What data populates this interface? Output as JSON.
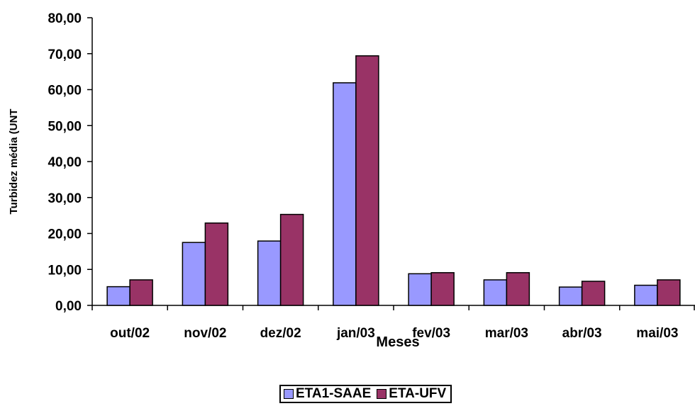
{
  "chart_data": {
    "type": "bar",
    "categories": [
      "out/02",
      "nov/02",
      "dez/02",
      "jan/03",
      "fev/03",
      "mar/03",
      "abr/03",
      "mai/03"
    ],
    "series": [
      {
        "name": "ETA1-SAAE",
        "color": "#9999ff",
        "values": [
          5.2,
          17.5,
          17.9,
          61.9,
          8.8,
          7.1,
          5.1,
          5.6
        ]
      },
      {
        "name": "ETA-UFV",
        "color": "#993366",
        "values": [
          7.1,
          22.9,
          25.3,
          69.4,
          9.1,
          9.1,
          6.7,
          7.1
        ]
      }
    ],
    "xlabel": "Meses",
    "ylabel": "Turbidez média (UNT",
    "ylim": [
      0,
      80
    ],
    "yticks": [
      "0,00",
      "10,00",
      "20,00",
      "30,00",
      "40,00",
      "50,00",
      "60,00",
      "70,00",
      "80,00"
    ],
    "grid": false,
    "legend_position": "bottom"
  }
}
